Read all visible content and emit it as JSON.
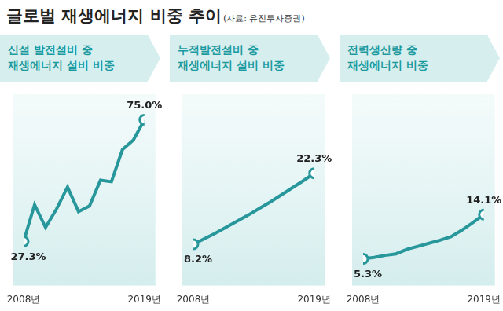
{
  "title": "글로벌 재생에너지 비중 추이",
  "source": "(자료: 유진투자증권)",
  "chart_data": [
    {
      "type": "line",
      "title": "신설 발전설비 중\n재생에너지 설비 비중",
      "categories": [
        "2008년",
        null,
        null,
        null,
        null,
        null,
        null,
        null,
        null,
        null,
        null,
        "2019년"
      ],
      "values": [
        27.3,
        41.7,
        32.8,
        40.0,
        48.6,
        39.0,
        41.2,
        51.3,
        50.7,
        63.3,
        67.1,
        75.0
      ],
      "value_labels": [
        "27.3%",
        null,
        null,
        null,
        null,
        null,
        null,
        null,
        null,
        null,
        null,
        "75.0%"
      ],
      "data_labels": true,
      "color": "#27979b",
      "marker": "circle",
      "ylim": [
        10,
        85
      ],
      "grid": false,
      "tick_labels": "x"
    },
    {
      "type": "line",
      "title": "누적발전설비 중\n재생에너지 설비 비중",
      "categories": [
        "2008년",
        null,
        null,
        null,
        null,
        null,
        null,
        null,
        null,
        null,
        null,
        "2019년"
      ],
      "values": [
        8.2,
        9.3,
        10.4,
        11.6,
        12.8,
        14.0,
        15.3,
        16.6,
        18.0,
        19.4,
        20.8,
        22.3
      ],
      "value_labels": [
        "8.2%",
        null,
        null,
        null,
        null,
        null,
        null,
        null,
        null,
        null,
        null,
        "22.3%"
      ],
      "data_labels": true,
      "color": "#27979b",
      "marker": "circle",
      "ylim": [
        0,
        38
      ],
      "grid": false,
      "tick_labels": "x"
    },
    {
      "type": "line",
      "title": "전력생산량 중\n재생에너지 비중",
      "categories": [
        "2008년",
        null,
        null,
        null,
        null,
        null,
        null,
        null,
        null,
        null,
        null,
        "2019년"
      ],
      "values": [
        5.3,
        5.6,
        6.0,
        6.3,
        7.2,
        7.8,
        8.4,
        9.0,
        9.7,
        11.0,
        12.5,
        14.1
      ],
      "value_labels": [
        "5.3%",
        null,
        null,
        null,
        null,
        null,
        null,
        null,
        null,
        null,
        null,
        "14.1%"
      ],
      "data_labels": true,
      "color": "#27979b",
      "marker": "circle",
      "ylim": [
        0,
        38
      ],
      "grid": false,
      "tick_labels": "x"
    }
  ]
}
